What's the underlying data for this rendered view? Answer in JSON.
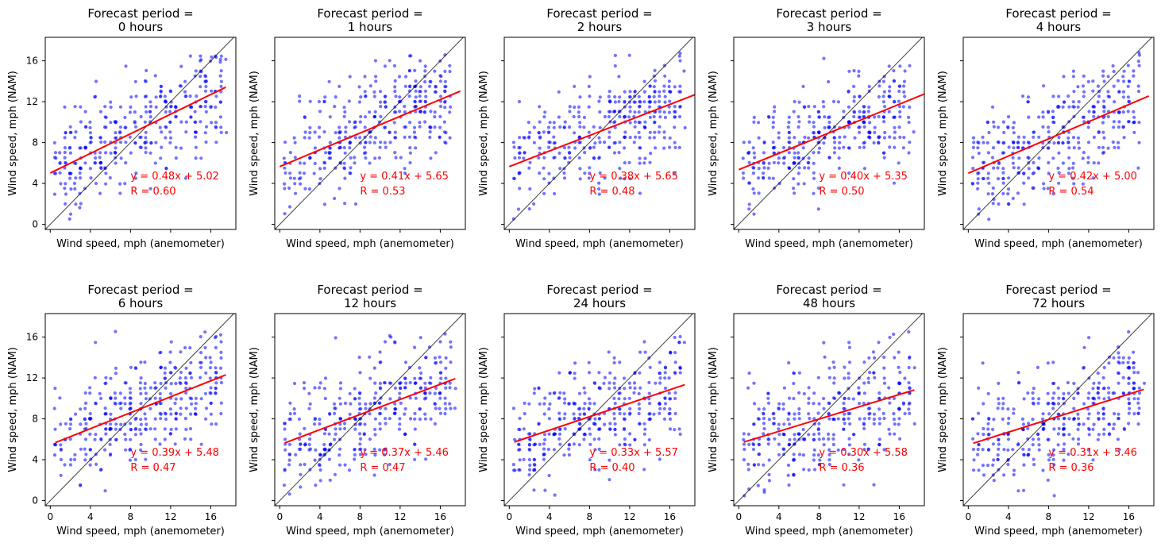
{
  "figure": {
    "title_prefix": "Forecast period =",
    "xlabel": "Wind speed, mph (anemometer)",
    "ylabel": "Wind speed, mph (NAM)",
    "ticks": [
      "0",
      "4",
      "8",
      "12",
      "16"
    ],
    "colors": {
      "points": "#0000ff",
      "fit": "#ff0000",
      "identity": "#000000",
      "annotation": "#ff0000"
    }
  },
  "chart_data": [
    {
      "type": "scatter",
      "title_line2": "0 hours",
      "eq": "y = 0.48x + 5.02",
      "r": "R = 0.60",
      "slope": 0.48,
      "intercept": 5.02,
      "xlim": [
        -0.5,
        18.5
      ],
      "ylim": [
        -0.5,
        18.3
      ],
      "fit_x": [
        0,
        17.5
      ],
      "show_xticks": false,
      "show_yticks": true
    },
    {
      "type": "scatter",
      "title_line2": "1 hours",
      "eq": "y = 0.41x + 5.65",
      "r": "R = 0.53",
      "slope": 0.41,
      "intercept": 5.65,
      "xlim": [
        -0.5,
        18.5
      ],
      "ylim": [
        -0.5,
        18.3
      ],
      "fit_x": [
        0,
        18
      ],
      "show_xticks": false,
      "show_yticks": false
    },
    {
      "type": "scatter",
      "title_line2": "2 hours",
      "eq": "y = 0.38x + 5.65",
      "r": "R = 0.48",
      "slope": 0.38,
      "intercept": 5.65,
      "xlim": [
        -0.5,
        18.5
      ],
      "ylim": [
        -0.5,
        18.3
      ],
      "fit_x": [
        0,
        18.5
      ],
      "show_xticks": false,
      "show_yticks": false
    },
    {
      "type": "scatter",
      "title_line2": "3 hours",
      "eq": "y = 0.40x + 5.35",
      "r": "R = 0.50",
      "slope": 0.4,
      "intercept": 5.35,
      "xlim": [
        -0.5,
        18.5
      ],
      "ylim": [
        -0.5,
        18.3
      ],
      "fit_x": [
        0,
        18.5
      ],
      "show_xticks": false,
      "show_yticks": false
    },
    {
      "type": "scatter",
      "title_line2": "4 hours",
      "eq": "y = 0.42x + 5.00",
      "r": "R = 0.54",
      "slope": 0.42,
      "intercept": 5.0,
      "xlim": [
        -0.5,
        18.5
      ],
      "ylim": [
        -0.5,
        18.3
      ],
      "fit_x": [
        0,
        18
      ],
      "show_xticks": false,
      "show_yticks": false
    },
    {
      "type": "scatter",
      "title_line2": "6 hours",
      "eq": "y = 0.39x + 5.48",
      "r": "R = 0.47",
      "slope": 0.39,
      "intercept": 5.48,
      "xlim": [
        -0.5,
        18.5
      ],
      "ylim": [
        -0.5,
        18.3
      ],
      "fit_x": [
        0.5,
        17.5
      ],
      "show_xticks": true,
      "show_yticks": true
    },
    {
      "type": "scatter",
      "title_line2": "12 hours",
      "eq": "y = 0.37x + 5.46",
      "r": "R = 0.47",
      "slope": 0.37,
      "intercept": 5.46,
      "xlim": [
        -0.5,
        18.5
      ],
      "ylim": [
        -0.5,
        18.3
      ],
      "fit_x": [
        0.5,
        17.5
      ],
      "show_xticks": true,
      "show_yticks": false
    },
    {
      "type": "scatter",
      "title_line2": "24 hours",
      "eq": "y = 0.33x + 5.57",
      "r": "R = 0.40",
      "slope": 0.33,
      "intercept": 5.57,
      "xlim": [
        -0.5,
        18.5
      ],
      "ylim": [
        -0.5,
        18.3
      ],
      "fit_x": [
        0.5,
        17.5
      ],
      "show_xticks": true,
      "show_yticks": false
    },
    {
      "type": "scatter",
      "title_line2": "48 hours",
      "eq": "y = 0.30x + 5.58",
      "r": "R = 0.36",
      "slope": 0.3,
      "intercept": 5.58,
      "xlim": [
        -0.5,
        18.5
      ],
      "ylim": [
        -0.5,
        18.3
      ],
      "fit_x": [
        0.5,
        17.5
      ],
      "show_xticks": true,
      "show_yticks": false
    },
    {
      "type": "scatter",
      "title_line2": "72 hours",
      "eq": "y = 0.31x + 5.46",
      "r": "R = 0.36",
      "slope": 0.31,
      "intercept": 5.46,
      "xlim": [
        -0.5,
        18.5
      ],
      "ylim": [
        -0.5,
        18.3
      ],
      "fit_x": [
        0.5,
        17.5
      ],
      "show_xticks": true,
      "show_yticks": false
    }
  ]
}
